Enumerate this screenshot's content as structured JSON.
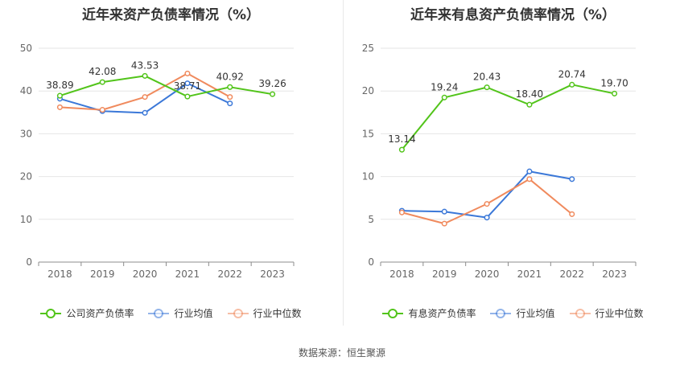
{
  "source_text": "数据来源：恒生聚源",
  "chart_data": [
    {
      "type": "line",
      "title": "近年来资产负债率情况（%）",
      "categories": [
        "2018",
        "2019",
        "2020",
        "2021",
        "2022",
        "2023"
      ],
      "ylim": [
        0,
        50
      ],
      "yticks": [
        "0",
        "10",
        "20",
        "30",
        "40",
        "50"
      ],
      "grid": true,
      "legend_position": "bottom",
      "series": [
        {
          "name": "公司资产负债率",
          "color": "#52c41a",
          "values": [
            38.89,
            42.08,
            43.53,
            38.71,
            40.92,
            39.26
          ],
          "labels": [
            "38.89",
            "42.08",
            "43.53",
            "38.71",
            "40.92",
            "39.26"
          ]
        },
        {
          "name": "行业均值",
          "color": "#3b78d8",
          "values": [
            38.2,
            35.3,
            34.9,
            41.8,
            37.1,
            null
          ],
          "labels": []
        },
        {
          "name": "行业中位数",
          "color": "#f08a5d",
          "values": [
            36.2,
            35.6,
            38.6,
            44.1,
            38.6,
            null
          ],
          "labels": []
        }
      ]
    },
    {
      "type": "line",
      "title": "近年来有息资产负债率情况（%）",
      "categories": [
        "2018",
        "2019",
        "2020",
        "2021",
        "2022",
        "2023"
      ],
      "ylim": [
        0,
        25
      ],
      "yticks": [
        "0",
        "5",
        "10",
        "15",
        "20",
        "25"
      ],
      "grid": true,
      "legend_position": "bottom",
      "series": [
        {
          "name": "有息资产负债率",
          "color": "#52c41a",
          "values": [
            13.14,
            19.24,
            20.43,
            18.4,
            20.74,
            19.7
          ],
          "labels": [
            "13.14",
            "19.24",
            "20.43",
            "18.40",
            "20.74",
            "19.70"
          ]
        },
        {
          "name": "行业均值",
          "color": "#3b78d8",
          "values": [
            6.0,
            5.9,
            5.2,
            10.6,
            9.7,
            null
          ],
          "labels": []
        },
        {
          "name": "行业中位数",
          "color": "#f08a5d",
          "values": [
            5.8,
            4.5,
            6.8,
            9.7,
            5.6,
            null
          ],
          "labels": []
        }
      ]
    }
  ]
}
